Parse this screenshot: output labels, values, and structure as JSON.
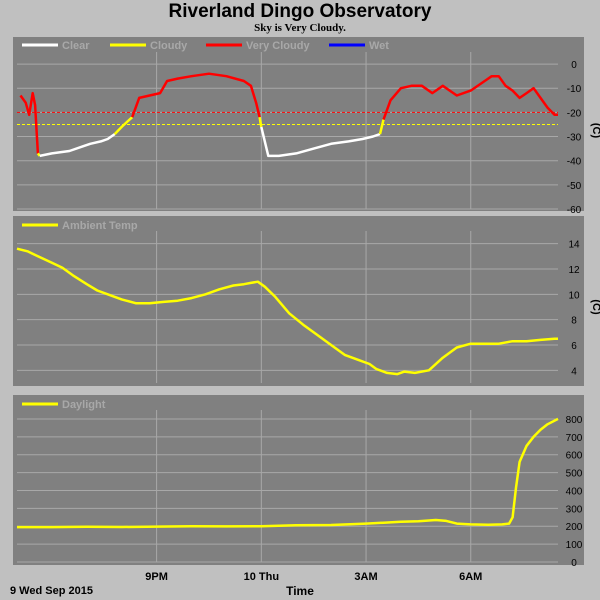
{
  "header": {
    "title": "Riverland Dingo Observatory",
    "subtitle": "Sky is Very Cloudy."
  },
  "footer": {
    "date": "9 Wed Sep 2015",
    "xlabel": "Time"
  },
  "colors": {
    "background": "#c0c0c0",
    "plot_bg": "#808080",
    "grid": "#a8a8a8",
    "clear": "#ffffff",
    "cloudy": "#ffff00",
    "very_cloudy": "#ff0000",
    "wet": "#0000ff",
    "threshold_red": "#ff0000",
    "threshold_yellow": "#ffff00",
    "ambient": "#ffff00",
    "daylight": "#ffff00"
  },
  "chart_data": [
    {
      "type": "line",
      "name": "sky",
      "legend": [
        "Clear",
        "Cloudy",
        "Very Cloudy",
        "Wet"
      ],
      "ylim": [
        -60,
        5
      ],
      "yticks": [
        0,
        -10,
        -20,
        -30,
        -40,
        -50,
        -60
      ],
      "ylabel": "(C)",
      "thresholds": [
        -20,
        -25
      ],
      "series": [
        {
          "state": "very_cloudy",
          "points": [
            [
              17.1,
              -13
            ],
            [
              17.25,
              -16
            ],
            [
              17.35,
              -21
            ],
            [
              17.45,
              -12
            ],
            [
              17.52,
              -17
            ],
            [
              17.6,
              -37
            ]
          ]
        },
        {
          "state": "cloudy",
          "points": [
            [
              17.6,
              -37
            ],
            [
              17.65,
              -38
            ]
          ]
        },
        {
          "state": "clear",
          "points": [
            [
              17.65,
              -38
            ],
            [
              18.0,
              -37
            ],
            [
              18.5,
              -36
            ],
            [
              18.9,
              -34
            ],
            [
              19.1,
              -33
            ],
            [
              19.4,
              -32
            ],
            [
              19.6,
              -31
            ],
            [
              19.8,
              -29
            ]
          ]
        },
        {
          "state": "cloudy",
          "points": [
            [
              19.8,
              -29
            ],
            [
              20.0,
              -26
            ],
            [
              20.15,
              -24
            ],
            [
              20.3,
              -22
            ]
          ]
        },
        {
          "state": "very_cloudy",
          "points": [
            [
              20.3,
              -22
            ],
            [
              20.5,
              -14
            ],
            [
              20.8,
              -13
            ],
            [
              21.1,
              -12
            ],
            [
              21.3,
              -7
            ],
            [
              21.6,
              -6
            ],
            [
              22.0,
              -5
            ],
            [
              22.5,
              -4
            ],
            [
              23.0,
              -5
            ],
            [
              23.5,
              -7
            ],
            [
              23.7,
              -9
            ],
            [
              23.85,
              -16
            ],
            [
              23.95,
              -22
            ]
          ]
        },
        {
          "state": "cloudy",
          "points": [
            [
              23.95,
              -22
            ],
            [
              24.0,
              -26
            ]
          ]
        },
        {
          "state": "clear",
          "points": [
            [
              24.0,
              -26
            ],
            [
              24.2,
              -38
            ],
            [
              24.5,
              -38
            ],
            [
              25.0,
              -37
            ],
            [
              25.5,
              -35
            ],
            [
              26.0,
              -33
            ],
            [
              26.5,
              -32
            ],
            [
              26.9,
              -31
            ],
            [
              27.2,
              -30
            ],
            [
              27.4,
              -29
            ]
          ]
        },
        {
          "state": "cloudy",
          "points": [
            [
              27.4,
              -29
            ],
            [
              27.5,
              -23
            ]
          ]
        },
        {
          "state": "very_cloudy",
          "points": [
            [
              27.5,
              -23
            ],
            [
              27.7,
              -15
            ],
            [
              28.0,
              -10
            ],
            [
              28.3,
              -9
            ],
            [
              28.6,
              -9
            ],
            [
              28.9,
              -12
            ],
            [
              29.2,
              -9
            ],
            [
              29.6,
              -13
            ],
            [
              30.0,
              -11
            ],
            [
              30.4,
              -7
            ],
            [
              30.6,
              -5
            ],
            [
              30.8,
              -5
            ],
            [
              31.0,
              -9
            ],
            [
              31.2,
              -11
            ],
            [
              31.4,
              -14
            ],
            [
              31.6,
              -12
            ],
            [
              31.8,
              -10
            ],
            [
              32.0,
              -14
            ],
            [
              32.2,
              -18
            ],
            [
              32.4,
              -21
            ],
            [
              32.5,
              -21
            ]
          ]
        }
      ]
    },
    {
      "type": "line",
      "name": "Ambient Temp",
      "legend": [
        "Ambient Temp"
      ],
      "ylim": [
        3,
        15
      ],
      "yticks": [
        14,
        12,
        10,
        8,
        6,
        4
      ],
      "ylabel": "(C)",
      "x": [
        17.0,
        17.3,
        17.6,
        18.0,
        18.3,
        18.6,
        19.0,
        19.3,
        19.6,
        20.0,
        20.4,
        20.8,
        21.2,
        21.6,
        22.0,
        22.4,
        22.8,
        23.2,
        23.5,
        23.7,
        23.9,
        24.1,
        24.4,
        24.8,
        25.2,
        25.6,
        26.0,
        26.4,
        26.8,
        27.1,
        27.3,
        27.6,
        27.9,
        28.1,
        28.4,
        28.8,
        29.2,
        29.6,
        30.0,
        30.4,
        30.8,
        31.2,
        31.6,
        32.0,
        32.4,
        32.5
      ],
      "values": [
        13.6,
        13.4,
        13.0,
        12.5,
        12.1,
        11.5,
        10.8,
        10.3,
        10.0,
        9.6,
        9.3,
        9.3,
        9.4,
        9.5,
        9.7,
        10.0,
        10.4,
        10.7,
        10.8,
        10.9,
        11.0,
        10.6,
        9.8,
        8.5,
        7.6,
        6.8,
        6.0,
        5.2,
        4.8,
        4.5,
        4.1,
        3.8,
        3.7,
        3.9,
        3.8,
        4.0,
        5.0,
        5.8,
        6.1,
        6.1,
        6.1,
        6.3,
        6.3,
        6.4,
        6.5,
        6.5
      ]
    },
    {
      "type": "line",
      "name": "Daylight",
      "legend": [
        "Daylight"
      ],
      "ylim": [
        0,
        850
      ],
      "yticks": [
        800,
        700,
        600,
        500,
        400,
        300,
        200,
        100,
        0
      ],
      "ylabel": "",
      "x": [
        17.0,
        18.0,
        19.0,
        20.0,
        21.0,
        22.0,
        23.0,
        24.0,
        25.0,
        26.0,
        27.0,
        27.5,
        28.0,
        28.5,
        29.0,
        29.3,
        29.6,
        30.0,
        30.5,
        30.9,
        31.1,
        31.2,
        31.3,
        31.4,
        31.6,
        31.8,
        32.0,
        32.2,
        32.5
      ],
      "values": [
        195,
        195,
        197,
        196,
        198,
        200,
        199,
        200,
        205,
        207,
        215,
        220,
        225,
        228,
        235,
        230,
        215,
        210,
        208,
        210,
        215,
        250,
        420,
        560,
        650,
        700,
        740,
        770,
        800
      ]
    }
  ],
  "x_axis": {
    "range": [
      17,
      32.5
    ],
    "ticks": [
      {
        "value": 21,
        "label": "9PM"
      },
      {
        "value": 24,
        "label": "10 Thu"
      },
      {
        "value": 27,
        "label": "3AM"
      },
      {
        "value": 30,
        "label": "6AM"
      }
    ]
  }
}
